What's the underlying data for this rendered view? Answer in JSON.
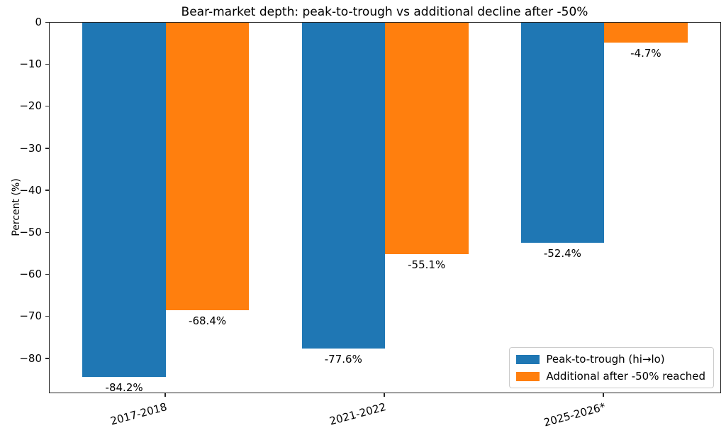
{
  "chart_data": {
    "type": "bar",
    "title": "Bear-market depth: peak-to-trough vs additional decline after -50%",
    "xlabel": "",
    "ylabel": "Percent (%)",
    "categories": [
      "2017-2018",
      "2021-2022",
      "2025-2026*"
    ],
    "series": [
      {
        "name": "Peak-to-trough (hi→lo)",
        "color": "#1f77b4",
        "values": [
          -84.2,
          -77.6,
          -52.4
        ],
        "data_labels": [
          "-84.2%",
          "-77.6%",
          "-52.4%"
        ]
      },
      {
        "name": "Additional after -50% reached",
        "color": "#ff7f0e",
        "values": [
          -68.4,
          -55.1,
          -4.7
        ],
        "data_labels": [
          "-68.4%",
          "-55.1%",
          "-4.7%"
        ]
      }
    ],
    "ylim": [
      -88,
      0
    ],
    "yticks": [
      0,
      -10,
      -20,
      -30,
      -40,
      -50,
      -60,
      -70,
      -80
    ],
    "ytick_labels": [
      "0",
      "−10",
      "−20",
      "−30",
      "−40",
      "−50",
      "−60",
      "−70",
      "−80"
    ],
    "xlim": [
      -0.53,
      2.53
    ],
    "bar_width_units": 0.38,
    "grid": false,
    "legend_position": "lower right",
    "spine_color": "#262626",
    "background_color": "#ffffff"
  }
}
